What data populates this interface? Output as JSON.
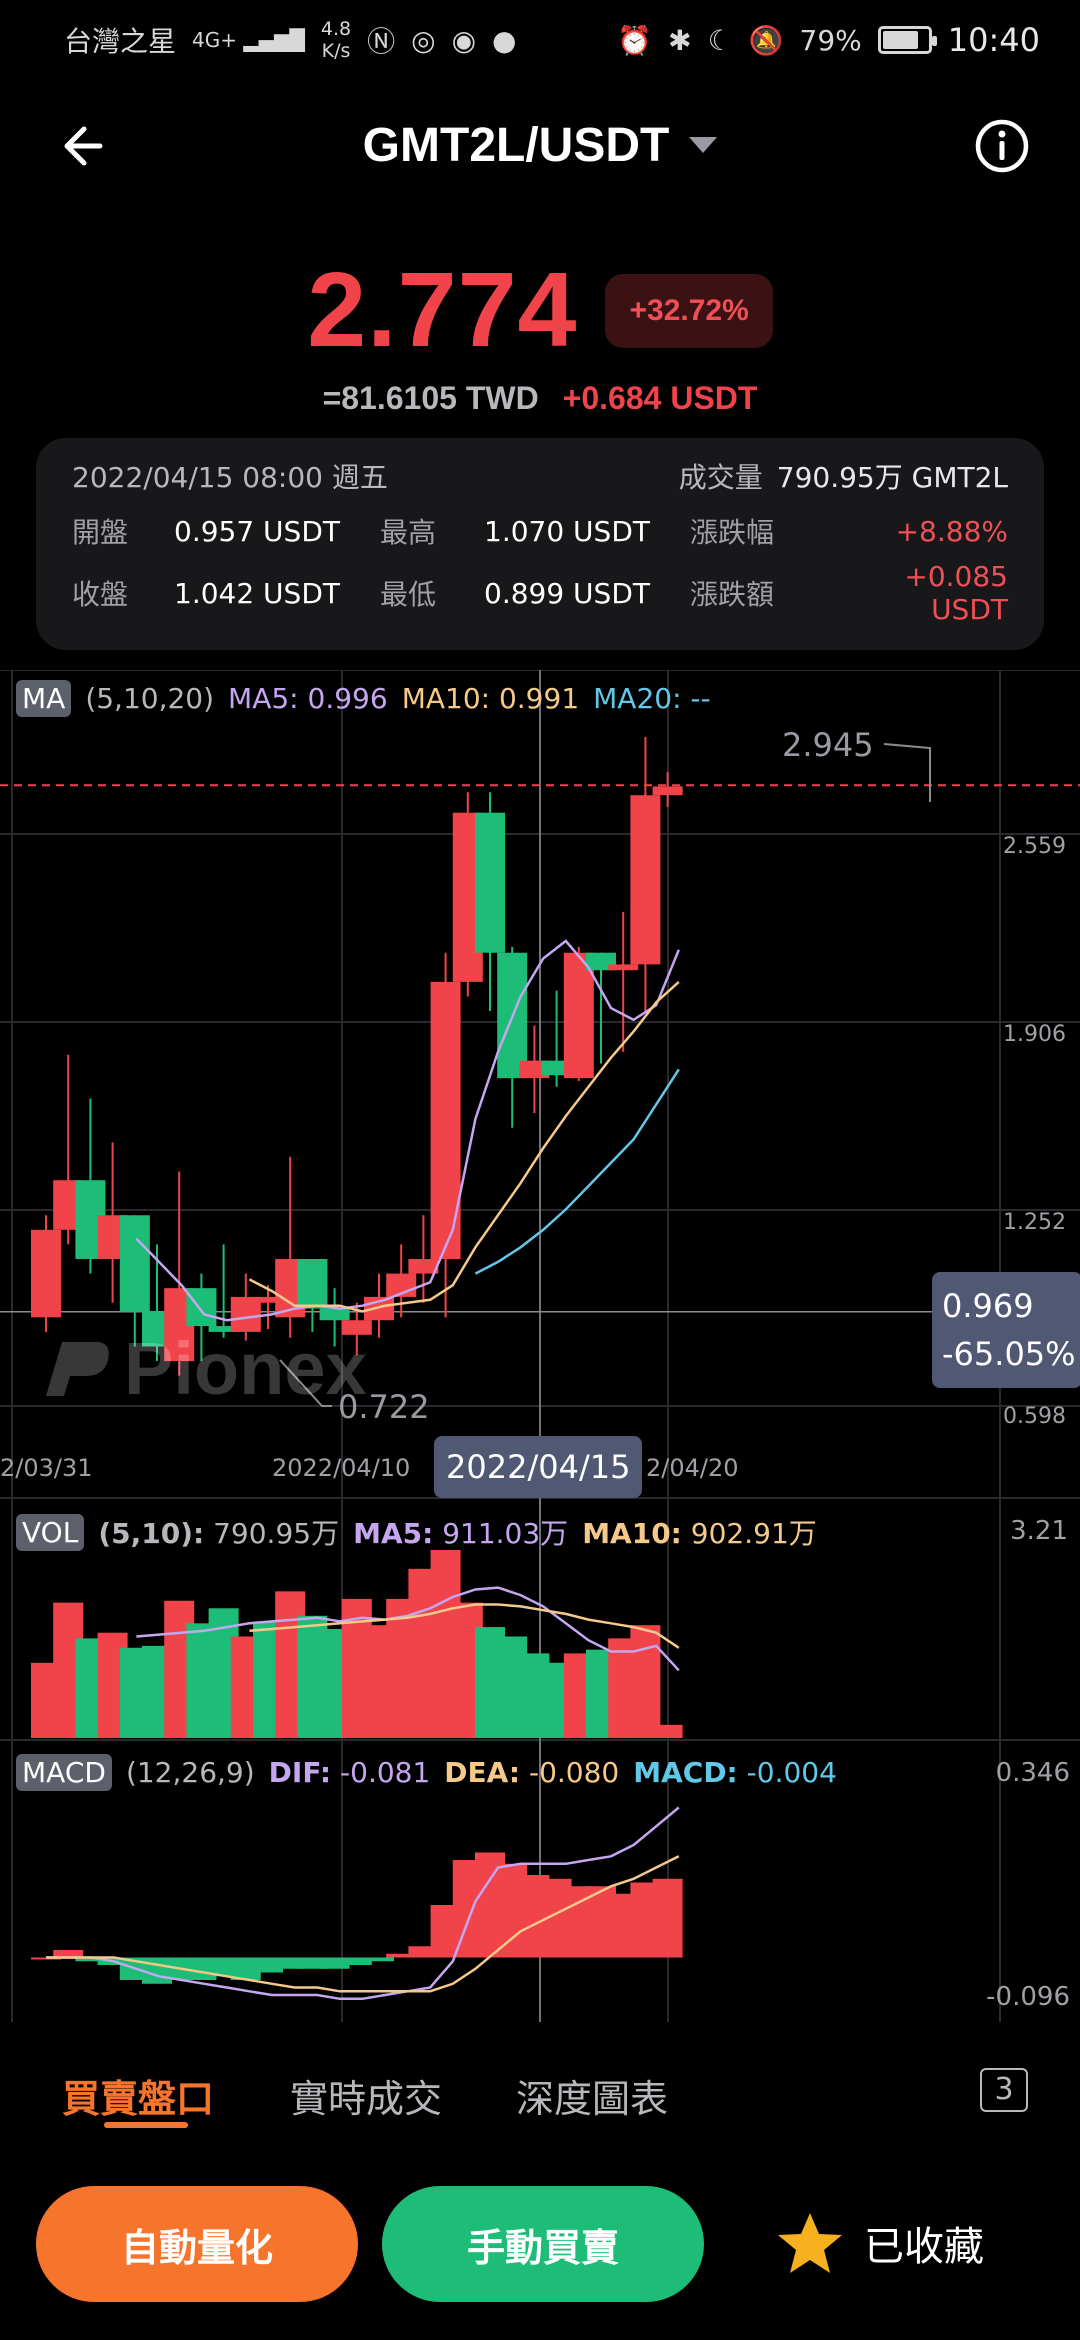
{
  "status_bar": {
    "carrier": "台灣之星",
    "network": "4G+",
    "speed_value": "4.8",
    "speed_unit": "K/s",
    "battery": "79%",
    "battery_level": 0.79,
    "time": "10:40"
  },
  "header": {
    "pair": "GMT2L/USDT",
    "back_icon": "arrow-left-icon",
    "info_icon": "info-circle-icon"
  },
  "price": {
    "last": "2.774",
    "change_pct": "+32.72%",
    "twd": "=81.6105 TWD",
    "change_usdt": "+0.684 USDT"
  },
  "stats": {
    "date": "2022/04/15 08:00 週五",
    "volume_label": "成交量",
    "volume_value": "790.95万 GMT2L",
    "open_label": "開盤",
    "open": "0.957 USDT",
    "high_label": "最高",
    "high": "1.070 USDT",
    "change_pct_label": "漲跌幅",
    "change_pct": "+8.88%",
    "close_label": "收盤",
    "close": "1.042 USDT",
    "low_label": "最低",
    "low": "0.899 USDT",
    "change_amt_label": "漲跌額",
    "change_amt": "+0.085 USDT"
  },
  "ma": {
    "tag": "MA",
    "params": "(5,10,20)",
    "ma5_label": "MA5:",
    "ma5": "0.996",
    "ma10_label": "MA10:",
    "ma10": "0.991",
    "ma20_label": "MA20:",
    "ma20": "--"
  },
  "price_axis": [
    "2.559",
    "1.906",
    "1.252",
    "0.598"
  ],
  "markers": {
    "high": "2.945",
    "low": "0.722"
  },
  "crosshair": {
    "price": "0.969",
    "pct": "-65.05%",
    "date": "2022/04/15"
  },
  "date_axis": [
    "2/03/31",
    "2022/04/10",
    "2/04/20"
  ],
  "watermark": "Pionex",
  "vol": {
    "tag": "VOL",
    "params": "(5,10):",
    "value": "790.95万",
    "ma5_label": "MA5:",
    "ma5": "911.03万",
    "ma10_label": "MA10:",
    "ma10": "902.91万",
    "axis_max": "3.21"
  },
  "macd": {
    "tag": "MACD",
    "params": "(12,26,9)",
    "dif_label": "DIF:",
    "dif": "-0.081",
    "dea_label": "DEA:",
    "dea": "-0.080",
    "macd_label": "MACD:",
    "macd": "-0.004",
    "axis_max": "0.346",
    "axis_min": "-0.096"
  },
  "tabs": [
    "買賣盤口",
    "實時成交",
    "深度圖表"
  ],
  "tab_count": "3",
  "actions": {
    "auto": "自動量化",
    "manual": "手動買賣",
    "favorite": "已收藏"
  },
  "colors": {
    "up": "#f0444a",
    "down": "#1ebd77",
    "accent": "#f7742c",
    "ma5": "#c5a6f0",
    "ma10": "#f5c98a",
    "ma20": "#62c8e8"
  },
  "chart_data": {
    "type": "candlestick",
    "price_axis": [
      0.598,
      1.252,
      1.906,
      2.559
    ],
    "high_marker": 2.945,
    "low_marker": 0.722,
    "candles": [
      {
        "o": 0.95,
        "h": 1.3,
        "l": 0.9,
        "c": 1.25
      },
      {
        "o": 1.25,
        "h": 1.85,
        "l": 1.2,
        "c": 1.42
      },
      {
        "o": 1.42,
        "h": 1.7,
        "l": 1.1,
        "c": 1.15
      },
      {
        "o": 1.15,
        "h": 1.55,
        "l": 1.0,
        "c": 1.3
      },
      {
        "o": 1.3,
        "h": 1.3,
        "l": 0.85,
        "c": 0.97
      },
      {
        "o": 0.97,
        "h": 1.2,
        "l": 0.8,
        "c": 0.85
      },
      {
        "o": 0.8,
        "h": 1.45,
        "l": 0.75,
        "c": 1.05
      },
      {
        "o": 1.05,
        "h": 1.1,
        "l": 0.8,
        "c": 0.92
      },
      {
        "o": 0.92,
        "h": 1.2,
        "l": 0.88,
        "c": 0.9
      },
      {
        "o": 0.9,
        "h": 1.1,
        "l": 0.87,
        "c": 1.02
      },
      {
        "o": 1.0,
        "h": 1.06,
        "l": 0.91,
        "c": 1.02
      },
      {
        "o": 0.95,
        "h": 1.5,
        "l": 0.88,
        "c": 1.15
      },
      {
        "o": 1.15,
        "h": 1.15,
        "l": 0.9,
        "c": 0.98
      },
      {
        "o": 0.98,
        "h": 1.05,
        "l": 0.85,
        "c": 0.94
      },
      {
        "o": 0.89,
        "h": 1.0,
        "l": 0.82,
        "c": 0.94
      },
      {
        "o": 0.94,
        "h": 1.1,
        "l": 0.88,
        "c": 1.02
      },
      {
        "o": 1.02,
        "h": 1.2,
        "l": 0.95,
        "c": 1.1
      },
      {
        "o": 1.1,
        "h": 1.3,
        "l": 1.0,
        "c": 1.15
      },
      {
        "o": 1.15,
        "h": 2.2,
        "l": 0.95,
        "c": 2.1
      },
      {
        "o": 2.1,
        "h": 2.75,
        "l": 2.05,
        "c": 2.68
      },
      {
        "o": 2.68,
        "h": 2.75,
        "l": 2.0,
        "c": 2.2
      },
      {
        "o": 2.2,
        "h": 2.22,
        "l": 1.6,
        "c": 1.77
      },
      {
        "o": 1.77,
        "h": 1.95,
        "l": 1.65,
        "c": 1.83
      },
      {
        "o": 1.83,
        "h": 2.07,
        "l": 1.74,
        "c": 1.78
      },
      {
        "o": 1.77,
        "h": 2.22,
        "l": 1.76,
        "c": 2.2
      },
      {
        "o": 2.2,
        "h": 2.2,
        "l": 1.82,
        "c": 2.14
      },
      {
        "o": 2.14,
        "h": 2.34,
        "l": 1.86,
        "c": 2.16
      },
      {
        "o": 2.16,
        "h": 2.94,
        "l": 2.0,
        "c": 2.74
      },
      {
        "o": 2.74,
        "h": 2.82,
        "l": 2.7,
        "c": 2.77
      }
    ],
    "ma5": [
      null,
      null,
      null,
      null,
      1.22,
      1.14,
      1.06,
      0.96,
      0.94,
      0.95,
      0.96,
      0.98,
      0.99,
      0.98,
      0.99,
      1.01,
      1.04,
      1.07,
      1.25,
      1.63,
      1.86,
      2.05,
      2.18,
      2.24,
      2.15,
      2.01,
      1.97,
      2.02,
      2.21
    ],
    "ma10": [
      null,
      null,
      null,
      null,
      null,
      null,
      null,
      null,
      null,
      1.08,
      1.04,
      0.99,
      0.99,
      0.99,
      0.97,
      0.99,
      1.0,
      1.01,
      1.06,
      1.19,
      1.3,
      1.41,
      1.53,
      1.64,
      1.74,
      1.84,
      1.93,
      2.03,
      2.1
    ],
    "ma20": [
      null,
      null,
      null,
      null,
      null,
      null,
      null,
      null,
      null,
      null,
      null,
      null,
      null,
      null,
      null,
      null,
      null,
      null,
      null,
      1.1,
      1.14,
      1.19,
      1.25,
      1.32,
      1.4,
      1.48,
      1.56,
      1.68,
      1.8
    ],
    "volume": [
      0.4,
      0.72,
      0.53,
      0.56,
      0.48,
      0.49,
      0.73,
      0.61,
      0.69,
      0.54,
      0.62,
      0.78,
      0.65,
      0.58,
      0.74,
      0.6,
      0.74,
      0.9,
      1.0,
      0.72,
      0.59,
      0.54,
      0.45,
      0.4,
      0.45,
      0.47,
      0.53,
      0.6,
      0.07
    ],
    "volume_up": [
      true,
      true,
      false,
      true,
      false,
      false,
      true,
      false,
      false,
      true,
      false,
      true,
      false,
      false,
      true,
      true,
      true,
      true,
      true,
      true,
      false,
      false,
      false,
      false,
      true,
      false,
      true,
      true,
      true
    ],
    "vol_ma5": [
      null,
      null,
      null,
      null,
      0.54,
      0.55,
      0.56,
      0.57,
      0.59,
      0.61,
      0.62,
      0.63,
      0.64,
      0.62,
      0.64,
      0.63,
      0.65,
      0.69,
      0.75,
      0.79,
      0.8,
      0.76,
      0.7,
      0.61,
      0.52,
      0.46,
      0.46,
      0.49,
      0.36
    ],
    "vol_ma10": [
      null,
      null,
      null,
      null,
      null,
      null,
      null,
      null,
      null,
      0.57,
      0.58,
      0.59,
      0.6,
      0.61,
      0.62,
      0.63,
      0.64,
      0.66,
      0.69,
      0.71,
      0.71,
      0.7,
      0.68,
      0.66,
      0.63,
      0.61,
      0.59,
      0.56,
      0.48
    ],
    "macd_hist": [
      0.0,
      0.02,
      -0.01,
      -0.02,
      -0.06,
      -0.07,
      -0.06,
      -0.06,
      -0.05,
      -0.06,
      -0.04,
      -0.03,
      -0.03,
      -0.03,
      -0.02,
      -0.01,
      0.01,
      0.03,
      0.14,
      0.26,
      0.28,
      0.25,
      0.22,
      0.21,
      0.19,
      0.19,
      0.17,
      0.2,
      0.21
    ],
    "dif": [
      0.0,
      0.0,
      0.0,
      -0.01,
      -0.03,
      -0.05,
      -0.06,
      -0.07,
      -0.08,
      -0.09,
      -0.1,
      -0.1,
      -0.1,
      -0.11,
      -0.11,
      -0.1,
      -0.09,
      -0.08,
      -0.01,
      0.15,
      0.24,
      0.25,
      0.25,
      0.25,
      0.26,
      0.27,
      0.3,
      0.35,
      0.4
    ],
    "dea": [
      0.0,
      0.0,
      0.0,
      0.0,
      -0.01,
      -0.02,
      -0.03,
      -0.04,
      -0.05,
      -0.06,
      -0.07,
      -0.08,
      -0.08,
      -0.09,
      -0.09,
      -0.09,
      -0.09,
      -0.09,
      -0.07,
      -0.03,
      0.02,
      0.07,
      0.1,
      0.13,
      0.16,
      0.19,
      0.21,
      0.24,
      0.27
    ]
  }
}
